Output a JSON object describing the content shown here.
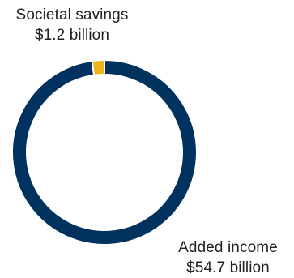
{
  "chart_data": {
    "type": "pie",
    "variant": "donut",
    "slices": [
      {
        "label": "Added income",
        "value": 54.7,
        "value_text": "$54.7 billion",
        "color": "#00325f"
      },
      {
        "label": "Societal savings",
        "value": 1.2,
        "value_text": "$1.2 billion",
        "color": "#f0b319"
      }
    ]
  }
}
